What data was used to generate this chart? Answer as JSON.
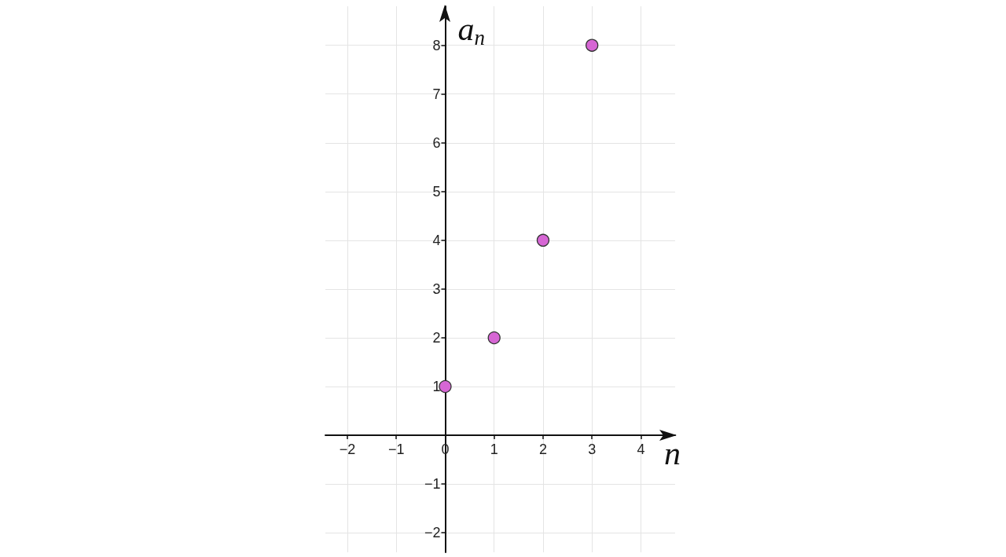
{
  "chart_data": {
    "type": "scatter",
    "xlabel": "n",
    "ylabel": "a$_{n}$",
    "x": [
      0,
      1,
      2,
      3
    ],
    "values": [
      1,
      2,
      4,
      8
    ],
    "color": "#d666d4",
    "marker": "circle",
    "xlim": [
      -2.45,
      4.7
    ],
    "ylim": [
      -2.4,
      8.8
    ],
    "xticks": [
      {
        "value": -2,
        "label": "−2"
      },
      {
        "value": -1,
        "label": "−1"
      },
      0,
      1,
      2,
      3,
      4
    ],
    "yticks": [
      {
        "value": -2,
        "label": "−2"
      },
      {
        "value": -1,
        "label": "−1"
      },
      1,
      2,
      3,
      4,
      5,
      6,
      7,
      8
    ],
    "grid": true
  }
}
